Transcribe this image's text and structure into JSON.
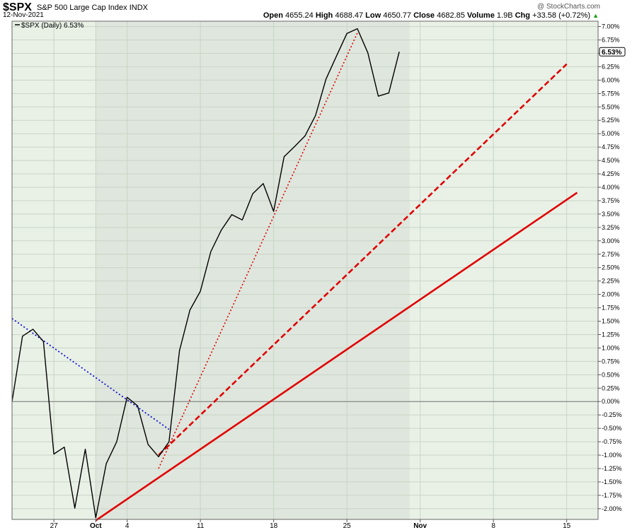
{
  "header": {
    "symbol": "$SPX",
    "name": "S&P 500 Large Cap Index",
    "exchange": "INDX",
    "date": "12-Nov-2021",
    "watermark": "@ StockCharts.com",
    "open_label": "Open",
    "open": "4655.24",
    "high_label": "High",
    "high": "4688.47",
    "low_label": "Low",
    "low": "4650.77",
    "close_label": "Close",
    "close": "4682.85",
    "volume_label": "Volume",
    "volume": "1.9B",
    "chg_label": "Chg",
    "chg": "+33.58 (+0.72%)",
    "chg_arrow": "▲"
  },
  "chart_data": {
    "type": "line",
    "legend": "$SPX (Daily) 6.53%",
    "legend_position": "top-left",
    "last_value_label": "6.53%",
    "y_unit": "percent",
    "ylim": [
      -2.2,
      7.1
    ],
    "yticks": [
      7.0,
      6.75,
      6.5,
      6.25,
      6.0,
      5.75,
      5.5,
      5.25,
      5.0,
      4.75,
      4.5,
      4.25,
      4.0,
      3.75,
      3.5,
      3.25,
      3.0,
      2.75,
      2.5,
      2.25,
      2.0,
      1.75,
      1.5,
      1.25,
      1.0,
      0.75,
      0.5,
      0.25,
      0.0,
      -0.25,
      -0.5,
      -0.75,
      -1.0,
      -1.25,
      -1.5,
      -1.75,
      -2.0
    ],
    "ytick_labels": [
      "7.00%",
      "6.75%",
      "6.50%",
      "6.25%",
      "6.00%",
      "5.75%",
      "5.50%",
      "5.25%",
      "5.00%",
      "4.75%",
      "4.50%",
      "4.25%",
      "4.00%",
      "3.75%",
      "3.50%",
      "3.25%",
      "3.00%",
      "2.75%",
      "2.50%",
      "2.25%",
      "2.00%",
      "1.75%",
      "1.50%",
      "1.25%",
      "1.00%",
      "0.75%",
      "0.50%",
      "0.25%",
      "0.00%",
      "-0.25%",
      "-0.50%",
      "-0.75%",
      "-1.00%",
      "-1.25%",
      "-1.50%",
      "-1.75%",
      "-2.00%"
    ],
    "xlim": [
      "2021-09-23",
      "2021-11-18"
    ],
    "xticks": [
      {
        "date": "2021-09-27",
        "label": "27",
        "bold": false
      },
      {
        "date": "2021-10-01",
        "label": "Oct",
        "bold": true
      },
      {
        "date": "2021-10-04",
        "label": "4",
        "bold": false
      },
      {
        "date": "2021-10-11",
        "label": "11",
        "bold": false
      },
      {
        "date": "2021-10-18",
        "label": "18",
        "bold": false
      },
      {
        "date": "2021-10-25",
        "label": "25",
        "bold": false
      },
      {
        "date": "2021-11-01",
        "label": "Nov",
        "bold": true
      },
      {
        "date": "2021-11-08",
        "label": "8",
        "bold": false
      },
      {
        "date": "2021-11-15",
        "label": "15",
        "bold": false
      }
    ],
    "shaded_period": [
      "2021-10-01",
      "2021-10-31"
    ],
    "series": [
      {
        "color": "#000000",
        "points": [
          [
            "2021-09-23",
            0.0
          ],
          [
            "2021-09-24",
            1.22
          ],
          [
            "2021-09-25",
            1.35
          ],
          [
            "2021-09-26",
            1.12
          ],
          [
            "2021-09-27",
            -0.98
          ],
          [
            "2021-09-28",
            -0.85
          ],
          [
            "2021-09-29",
            -1.99
          ],
          [
            "2021-09-30",
            -0.89
          ],
          [
            "2021-10-01",
            -2.17
          ],
          [
            "2021-10-02",
            -1.16
          ],
          [
            "2021-10-03",
            -0.75
          ],
          [
            "2021-10-04",
            0.08
          ],
          [
            "2021-10-05",
            -0.08
          ],
          [
            "2021-10-06",
            -0.8
          ],
          [
            "2021-10-07",
            -1.03
          ],
          [
            "2021-10-08",
            -0.75
          ],
          [
            "2021-10-09",
            0.95
          ],
          [
            "2021-10-10",
            1.71
          ],
          [
            "2021-10-11",
            2.06
          ],
          [
            "2021-10-12",
            2.8
          ],
          [
            "2021-10-13",
            3.2
          ],
          [
            "2021-10-14",
            3.49
          ],
          [
            "2021-10-15",
            3.39
          ],
          [
            "2021-10-16",
            3.88
          ],
          [
            "2021-10-17",
            4.07
          ],
          [
            "2021-10-18",
            3.55
          ],
          [
            "2021-10-19",
            4.57
          ],
          [
            "2021-10-20",
            4.76
          ],
          [
            "2021-10-21",
            4.96
          ],
          [
            "2021-10-22",
            5.34
          ],
          [
            "2021-10-23",
            6.02
          ],
          [
            "2021-10-24",
            6.45
          ],
          [
            "2021-10-25",
            6.87
          ],
          [
            "2021-10-26",
            6.96
          ],
          [
            "2021-10-27",
            6.51
          ],
          [
            "2021-10-28",
            5.7
          ],
          [
            "2021-10-29",
            5.76
          ],
          [
            "2021-10-30",
            6.53
          ]
        ]
      }
    ],
    "trendlines": [
      {
        "color": "#1010d0",
        "style": "dotted",
        "from": [
          "2021-09-23",
          1.55
        ],
        "to": [
          "2021-10-08",
          -0.52
        ]
      },
      {
        "color": "#e00000",
        "style": "solid",
        "from": [
          "2021-10-01",
          -2.22
        ],
        "to": [
          "2021-11-16",
          3.9
        ]
      },
      {
        "color": "#e00000",
        "style": "dashed",
        "from": [
          "2021-10-07",
          -1.0
        ],
        "to": [
          "2021-11-15",
          6.3
        ]
      },
      {
        "color": "#e00000",
        "style": "dotted",
        "from": [
          "2021-10-07",
          -1.25
        ],
        "to": [
          "2021-10-26",
          6.88
        ]
      }
    ]
  }
}
